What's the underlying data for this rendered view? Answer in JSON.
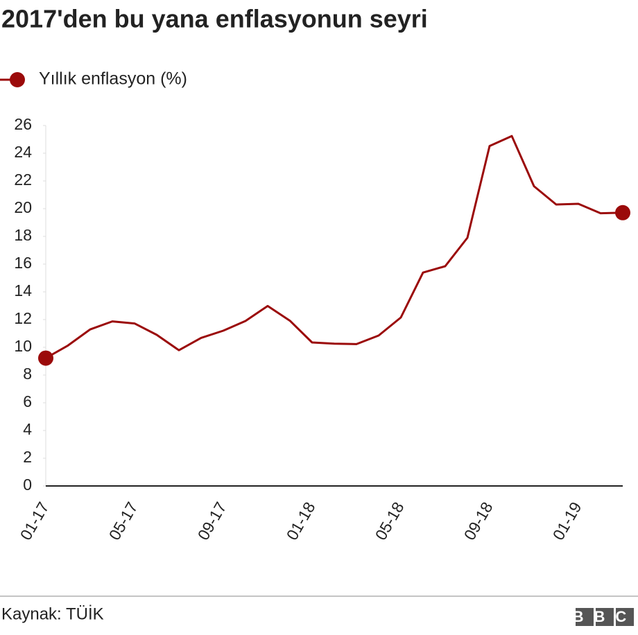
{
  "chart_data": {
    "type": "line",
    "title": "2017'den bu yana enflasyonun seyri",
    "source": "Kaynak: TÜİK",
    "logo": "BBC",
    "categories": [
      "01-17",
      null,
      null,
      null,
      "05-17",
      null,
      null,
      null,
      "09-17",
      null,
      null,
      null,
      "01-18",
      null,
      null,
      null,
      "05-18",
      null,
      null,
      null,
      "09-18",
      null,
      null,
      null,
      "01-19",
      null,
      null
    ],
    "series": [
      {
        "name": "Yıllık enflasyon (%)",
        "color": "#9b0a0a",
        "values": [
          9.22,
          10.13,
          11.29,
          11.87,
          11.72,
          10.9,
          9.79,
          10.68,
          11.2,
          11.9,
          12.98,
          11.92,
          10.35,
          10.26,
          10.23,
          10.85,
          12.15,
          15.39,
          15.85,
          17.9,
          24.52,
          25.24,
          21.62,
          20.3,
          20.35,
          19.67,
          19.71
        ]
      }
    ],
    "ylim": [
      0,
      26
    ],
    "yticks": [
      0,
      2,
      4,
      6,
      8,
      10,
      12,
      14,
      16,
      18,
      20,
      22,
      24,
      26
    ],
    "legend": "top-left"
  }
}
